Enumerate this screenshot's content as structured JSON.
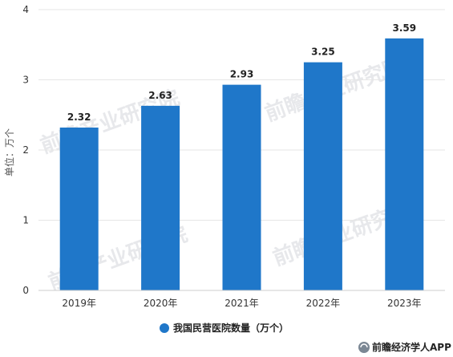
{
  "chart_data": {
    "type": "bar",
    "categories": [
      "2019年",
      "2020年",
      "2021年",
      "2022年",
      "2023年"
    ],
    "series": [
      {
        "name": "我国民营医院数量（万个）",
        "values": [
          2.32,
          2.63,
          2.93,
          3.25,
          3.59
        ]
      }
    ],
    "data_labels": [
      "2.32",
      "2.63",
      "2.93",
      "3.25",
      "3.59"
    ],
    "ylabel": "单位：万个",
    "xlabel": "",
    "ylim": [
      0,
      4
    ],
    "yticks": [
      0,
      1,
      2,
      3,
      4
    ],
    "grid": true,
    "legend_position": "bottom",
    "bar_color": "#1f77c9"
  },
  "watermark": {
    "text": "前瞻产业研究院"
  },
  "footer": {
    "brand": "前瞻经济学人APP"
  },
  "colors": {
    "bar": "#1f77c9",
    "grid": "#e6e6e6",
    "legend_dot": "#1f77c9"
  }
}
